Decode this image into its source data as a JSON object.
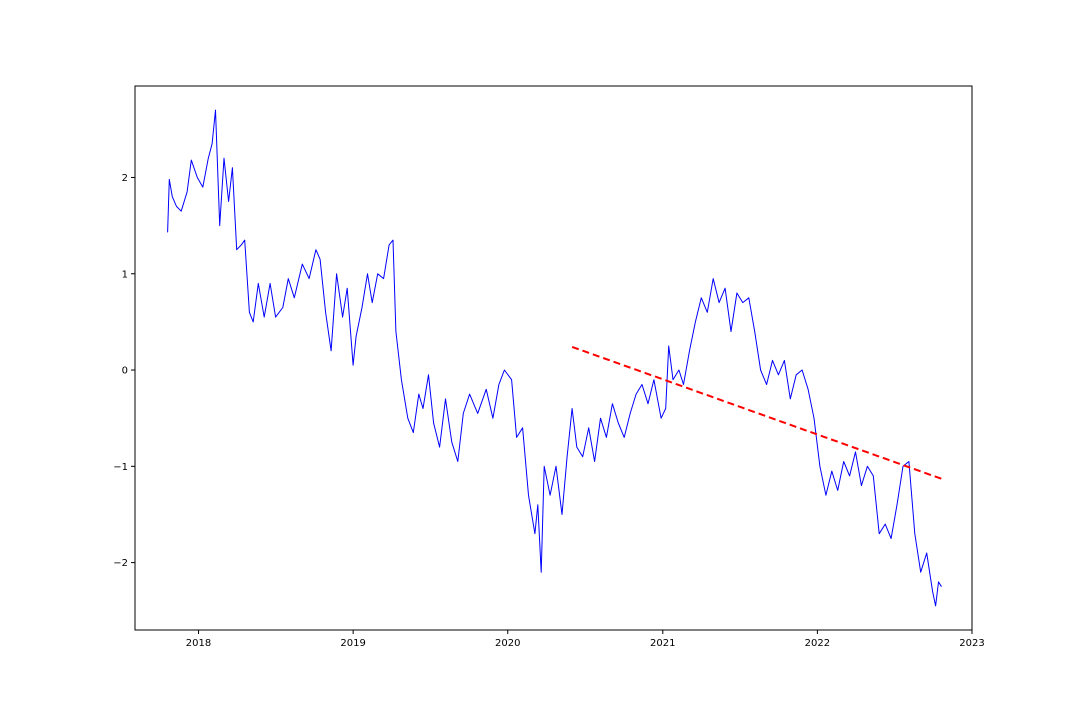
{
  "chart_data": {
    "type": "line",
    "title": "",
    "xlabel": "",
    "ylabel": "",
    "xlim": [
      "2017-08-04",
      "2023-01-01"
    ],
    "ylim": [
      -2.7,
      2.95
    ],
    "x_ticks": [
      "2018",
      "2019",
      "2020",
      "2021",
      "2022",
      "2023"
    ],
    "y_ticks": [
      -2,
      -1,
      0,
      1,
      2
    ],
    "grid": false,
    "legend": "none",
    "series": [
      {
        "style": "solid",
        "color": "#0000ff",
        "points": [
          [
            "2017-10-20",
            1.43
          ],
          [
            "2017-10-24",
            1.98
          ],
          [
            "2017-10-31",
            1.8
          ],
          [
            "2017-11-10",
            1.7
          ],
          [
            "2017-11-21",
            1.65
          ],
          [
            "2017-12-05",
            1.85
          ],
          [
            "2017-12-15",
            2.18
          ],
          [
            "2017-12-29",
            2.0
          ],
          [
            "2018-01-11",
            1.9
          ],
          [
            "2018-01-24",
            2.2
          ],
          [
            "2018-02-02",
            2.35
          ],
          [
            "2018-02-10",
            2.7
          ],
          [
            "2018-02-20",
            1.5
          ],
          [
            "2018-03-02",
            2.2
          ],
          [
            "2018-03-13",
            1.75
          ],
          [
            "2018-03-22",
            2.1
          ],
          [
            "2018-04-01",
            1.25
          ],
          [
            "2018-04-12",
            1.3
          ],
          [
            "2018-04-20",
            1.35
          ],
          [
            "2018-05-01",
            0.6
          ],
          [
            "2018-05-10",
            0.5
          ],
          [
            "2018-05-22",
            0.9
          ],
          [
            "2018-06-05",
            0.55
          ],
          [
            "2018-06-19",
            0.9
          ],
          [
            "2018-07-02",
            0.55
          ],
          [
            "2018-07-19",
            0.65
          ],
          [
            "2018-08-01",
            0.95
          ],
          [
            "2018-08-15",
            0.75
          ],
          [
            "2018-09-03",
            1.1
          ],
          [
            "2018-09-19",
            0.95
          ],
          [
            "2018-10-05",
            1.25
          ],
          [
            "2018-10-15",
            1.15
          ],
          [
            "2018-10-28",
            0.6
          ],
          [
            "2018-11-10",
            0.2
          ],
          [
            "2018-11-23",
            1.0
          ],
          [
            "2018-12-07",
            0.55
          ],
          [
            "2018-12-18",
            0.85
          ],
          [
            "2019-01-01",
            0.05
          ],
          [
            "2019-01-08",
            0.35
          ],
          [
            "2019-01-22",
            0.65
          ],
          [
            "2019-02-04",
            1.0
          ],
          [
            "2019-02-15",
            0.7
          ],
          [
            "2019-02-28",
            1.0
          ],
          [
            "2019-03-14",
            0.95
          ],
          [
            "2019-03-27",
            1.3
          ],
          [
            "2019-04-05",
            1.35
          ],
          [
            "2019-04-12",
            0.4
          ],
          [
            "2019-04-25",
            -0.1
          ],
          [
            "2019-05-10",
            -0.5
          ],
          [
            "2019-05-23",
            -0.65
          ],
          [
            "2019-06-05",
            -0.25
          ],
          [
            "2019-06-15",
            -0.4
          ],
          [
            "2019-06-28",
            -0.05
          ],
          [
            "2019-07-10",
            -0.55
          ],
          [
            "2019-07-24",
            -0.8
          ],
          [
            "2019-08-07",
            -0.3
          ],
          [
            "2019-08-22",
            -0.75
          ],
          [
            "2019-09-05",
            -0.95
          ],
          [
            "2019-09-18",
            -0.45
          ],
          [
            "2019-10-03",
            -0.25
          ],
          [
            "2019-10-22",
            -0.45
          ],
          [
            "2019-11-11",
            -0.2
          ],
          [
            "2019-11-27",
            -0.5
          ],
          [
            "2019-12-11",
            -0.15
          ],
          [
            "2019-12-24",
            0.0
          ],
          [
            "2020-01-10",
            -0.1
          ],
          [
            "2020-01-22",
            -0.7
          ],
          [
            "2020-02-05",
            -0.6
          ],
          [
            "2020-02-19",
            -1.3
          ],
          [
            "2020-03-05",
            -1.7
          ],
          [
            "2020-03-12",
            -1.4
          ],
          [
            "2020-03-20",
            -2.1
          ],
          [
            "2020-03-27",
            -1.0
          ],
          [
            "2020-04-10",
            -1.3
          ],
          [
            "2020-04-24",
            -1.0
          ],
          [
            "2020-05-08",
            -1.5
          ],
          [
            "2020-05-20",
            -0.9
          ],
          [
            "2020-06-01",
            -0.4
          ],
          [
            "2020-06-12",
            -0.8
          ],
          [
            "2020-06-26",
            -0.9
          ],
          [
            "2020-07-10",
            -0.6
          ],
          [
            "2020-07-24",
            -0.95
          ],
          [
            "2020-08-07",
            -0.5
          ],
          [
            "2020-08-21",
            -0.7
          ],
          [
            "2020-09-04",
            -0.35
          ],
          [
            "2020-09-18",
            -0.55
          ],
          [
            "2020-10-02",
            -0.7
          ],
          [
            "2020-10-16",
            -0.45
          ],
          [
            "2020-10-30",
            -0.25
          ],
          [
            "2020-11-13",
            -0.15
          ],
          [
            "2020-11-27",
            -0.35
          ],
          [
            "2020-12-11",
            -0.1
          ],
          [
            "2020-12-28",
            -0.5
          ],
          [
            "2021-01-08",
            -0.4
          ],
          [
            "2021-01-15",
            0.25
          ],
          [
            "2021-01-25",
            -0.1
          ],
          [
            "2021-02-08",
            0.0
          ],
          [
            "2021-02-19",
            -0.15
          ],
          [
            "2021-03-05",
            0.2
          ],
          [
            "2021-03-19",
            0.5
          ],
          [
            "2021-04-02",
            0.75
          ],
          [
            "2021-04-16",
            0.6
          ],
          [
            "2021-04-30",
            0.95
          ],
          [
            "2021-05-14",
            0.7
          ],
          [
            "2021-05-28",
            0.85
          ],
          [
            "2021-06-11",
            0.4
          ],
          [
            "2021-06-25",
            0.8
          ],
          [
            "2021-07-09",
            0.7
          ],
          [
            "2021-07-23",
            0.75
          ],
          [
            "2021-08-06",
            0.4
          ],
          [
            "2021-08-20",
            0.0
          ],
          [
            "2021-09-03",
            -0.15
          ],
          [
            "2021-09-17",
            0.1
          ],
          [
            "2021-10-01",
            -0.05
          ],
          [
            "2021-10-15",
            0.1
          ],
          [
            "2021-10-29",
            -0.3
          ],
          [
            "2021-11-12",
            -0.05
          ],
          [
            "2021-11-26",
            0.0
          ],
          [
            "2021-12-10",
            -0.2
          ],
          [
            "2021-12-24",
            -0.5
          ],
          [
            "2022-01-07",
            -1.0
          ],
          [
            "2022-01-21",
            -1.3
          ],
          [
            "2022-02-04",
            -1.05
          ],
          [
            "2022-02-18",
            -1.25
          ],
          [
            "2022-03-04",
            -0.95
          ],
          [
            "2022-03-18",
            -1.1
          ],
          [
            "2022-04-01",
            -0.85
          ],
          [
            "2022-04-15",
            -1.2
          ],
          [
            "2022-04-29",
            -1.0
          ],
          [
            "2022-05-13",
            -1.1
          ],
          [
            "2022-05-27",
            -1.7
          ],
          [
            "2022-06-10",
            -1.6
          ],
          [
            "2022-06-24",
            -1.75
          ],
          [
            "2022-07-08",
            -1.4
          ],
          [
            "2022-07-22",
            -1.0
          ],
          [
            "2022-08-05",
            -0.95
          ],
          [
            "2022-08-19",
            -1.7
          ],
          [
            "2022-09-02",
            -2.1
          ],
          [
            "2022-09-16",
            -1.9
          ],
          [
            "2022-09-30",
            -2.3
          ],
          [
            "2022-10-07",
            -2.45
          ],
          [
            "2022-10-14",
            -2.2
          ],
          [
            "2022-10-21",
            -2.25
          ]
        ]
      },
      {
        "style": "dashed",
        "color": "#ff0000",
        "points": [
          [
            "2020-06-01",
            0.24
          ],
          [
            "2022-10-21",
            -1.13
          ]
        ]
      }
    ]
  }
}
